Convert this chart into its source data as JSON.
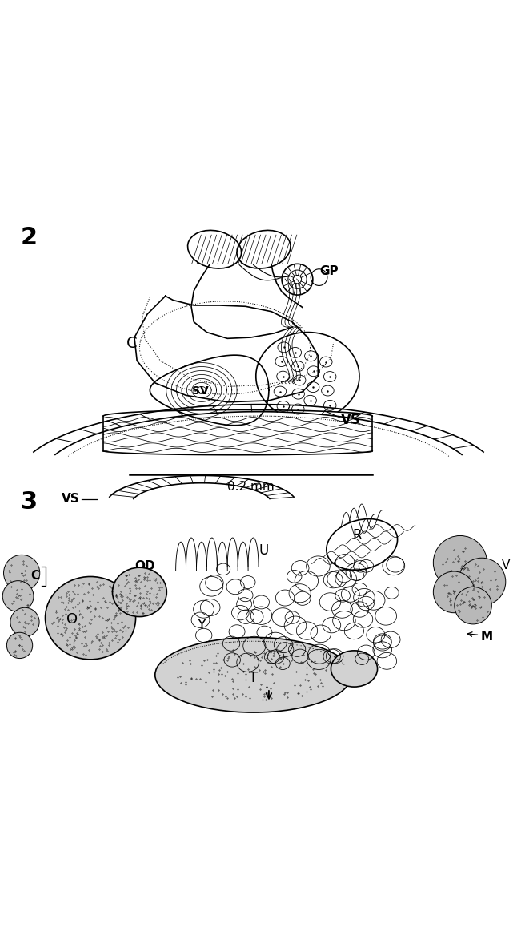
{
  "fig_width": 6.46,
  "fig_height": 11.78,
  "bg_color": "#ffffff",
  "fig2_label": "2",
  "fig3_label": "3",
  "scale_bar_text": "0.2 mm"
}
